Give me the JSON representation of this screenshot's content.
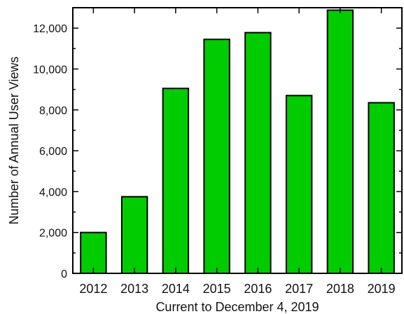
{
  "chart_data": {
    "type": "bar",
    "categories": [
      "2012",
      "2013",
      "2014",
      "2015",
      "2016",
      "2017",
      "2018",
      "2019"
    ],
    "values": [
      2000,
      3750,
      9050,
      11450,
      11780,
      8700,
      12880,
      8350
    ],
    "title": "",
    "xlabel": "Current to December 4, 2019",
    "ylabel": "Number of Annual User Views",
    "ylim": [
      0,
      13000
    ],
    "yticks": [
      0,
      2000,
      4000,
      6000,
      8000,
      10000,
      12000
    ],
    "ytick_labels": [
      "0",
      "2,000",
      "4,000",
      "6,000",
      "8,000",
      "10,000",
      "12,000"
    ],
    "grid": false,
    "legend": "none",
    "colors": {
      "bar_fill": "#00cc00",
      "bar_stroke": "#000000",
      "axis": "#000000"
    }
  }
}
